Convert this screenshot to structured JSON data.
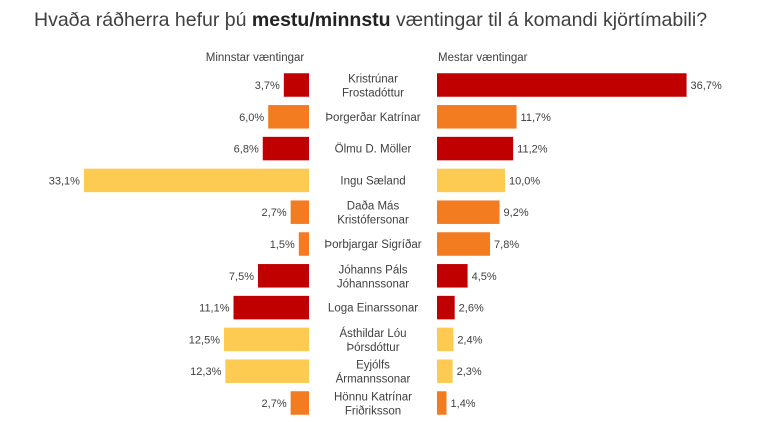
{
  "title": {
    "before": "Hvaða ráðherra hefur þú ",
    "bold": "mestu/minnstu",
    "after": " væntingar til á komandi kjörtímabili?"
  },
  "colors": {
    "red": "#c00000",
    "orange": "#f47c20",
    "yellow": "#fecb52"
  },
  "chart_data": {
    "type": "bar",
    "headers": {
      "left": "Minnstar væntingar",
      "right": "Mestar væntingar"
    },
    "categories": [
      [
        "Kristrúnar",
        "Frostadóttur"
      ],
      [
        "Þorgerðar Katrínar"
      ],
      [
        "Ölmu D. Möller"
      ],
      [
        "Ingu Sæland"
      ],
      [
        "Daða Más",
        "Kristófersonar"
      ],
      [
        "Þorbjargar Sigríðar"
      ],
      [
        "Jóhanns Páls",
        "Jóhannssonar"
      ],
      [
        "Loga Einarssonar"
      ],
      [
        "Ásthildar Lóu",
        "Þórsdóttur"
      ],
      [
        "Eyjólfs",
        "Ármannssonar"
      ],
      [
        "Hönnu Katrínar",
        "Friðriksson"
      ]
    ],
    "colors": [
      "red",
      "orange",
      "red",
      "yellow",
      "orange",
      "orange",
      "red",
      "red",
      "yellow",
      "yellow",
      "orange"
    ],
    "series": [
      {
        "name": "Minnstar væntingar",
        "values": [
          3.7,
          6.0,
          6.8,
          33.1,
          2.7,
          1.5,
          7.5,
          11.1,
          12.5,
          12.3,
          2.7
        ],
        "labels": [
          "3,7%",
          "6,0%",
          "6,8%",
          "33,1%",
          "2,7%",
          "1,5%",
          "7,5%",
          "11,1%",
          "12,5%",
          "12,3%",
          "2,7%"
        ]
      },
      {
        "name": "Mestar væntingar",
        "values": [
          36.7,
          11.7,
          11.2,
          10.0,
          9.2,
          7.8,
          4.5,
          2.6,
          2.4,
          2.3,
          1.4
        ],
        "labels": [
          "36,7%",
          "11,7%",
          "11,2%",
          "10,0%",
          "9,2%",
          "7,8%",
          "4,5%",
          "2,6%",
          "2,4%",
          "2,3%",
          "1,4%"
        ]
      }
    ]
  }
}
